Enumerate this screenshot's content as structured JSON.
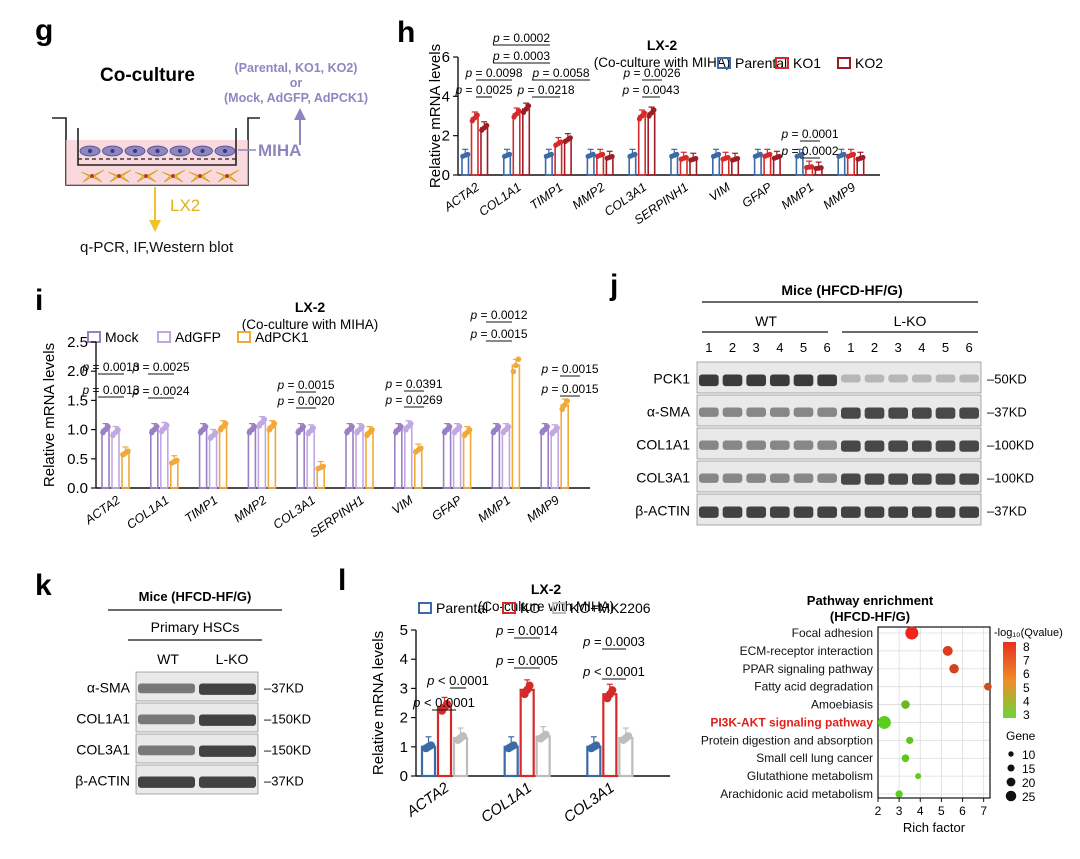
{
  "panels": {
    "g": "g",
    "h": "h",
    "i": "i",
    "j": "j",
    "k": "k",
    "l": "l"
  },
  "g": {
    "title": "Co-culture",
    "groups1": "(Parental, KO1, KO2)",
    "or": "or",
    "groups2": "(Mock, AdGFP, AdPCK1)",
    "miha": "MIHA",
    "lx2": "LX2",
    "assays": "q-PCR, IF,Western blot"
  },
  "chart_data": [
    {
      "id": "h",
      "type": "bar",
      "title": "LX-2",
      "subtitle": "(Co-culture with MIHA)",
      "ylabel": "Relative mRNA  levels",
      "ylim": [
        0,
        6
      ],
      "yticks": [
        "0",
        "2",
        "4",
        "6"
      ],
      "categories": [
        "ACTA2",
        "COL1A1",
        "TIMP1",
        "MMP2",
        "COL3A1",
        "SERPINH1",
        "VIM",
        "GFAP",
        "MMP1",
        "MMP9"
      ],
      "series": [
        {
          "name": "Parental",
          "color": "#3a6aa8",
          "values": [
            1,
            1,
            1,
            1,
            1,
            1,
            1,
            1,
            1,
            1
          ]
        },
        {
          "name": "KO1",
          "color": "#d62a2a",
          "values": [
            2.9,
            3.1,
            1.6,
            1.0,
            3.0,
            0.85,
            0.85,
            1.0,
            0.4,
            1.0
          ]
        },
        {
          "name": "KO2",
          "color": "#a01c24",
          "values": [
            2.4,
            3.35,
            1.8,
            0.9,
            3.15,
            0.8,
            0.8,
            0.9,
            0.35,
            0.85
          ]
        }
      ],
      "pvalues": [
        "p = 0.0002",
        "p = 0.0003",
        "p = 0.0098",
        "p = 0.0058",
        "p = 0.0026",
        "p = 0.0025",
        "p = 0.0218",
        "p = 0.0043",
        "p = 0.0001",
        "p = 0.0002"
      ]
    },
    {
      "id": "i",
      "type": "bar",
      "title": "LX-2",
      "subtitle": "(Co-culture with MIHA)",
      "ylabel": "Relative mRNA  levels",
      "ylim": [
        0,
        2.5
      ],
      "yticks": [
        "0.0",
        "0.5",
        "1.0",
        "1.5",
        "2.0",
        "2.5"
      ],
      "categories": [
        "ACTA2",
        "COL1A1",
        "TIMP1",
        "MMP2",
        "COL3A1",
        "SERPINH1",
        "VIM",
        "GFAP",
        "MMP1",
        "MMP9"
      ],
      "series": [
        {
          "name": "Mock",
          "color": "#9b7fc4",
          "values": [
            1,
            1,
            1,
            1,
            1,
            1,
            1,
            1,
            1,
            1
          ]
        },
        {
          "name": "AdGFP",
          "color": "#c1a8e2",
          "values": [
            0.95,
            1.02,
            0.9,
            1.12,
            0.98,
            1.0,
            1.05,
            1.0,
            1.0,
            0.98
          ]
        },
        {
          "name": "AdPCK1",
          "color": "#f0aa3a",
          "values": [
            0.6,
            0.45,
            1.05,
            1.05,
            0.35,
            0.95,
            0.65,
            0.95,
            2.1,
            1.42
          ]
        }
      ],
      "pvalues": [
        "p = 0.0013",
        "p = 0.0013",
        "p = 0.0025",
        "p = 0.0024",
        "p = 0.0015",
        "p = 0.0020",
        "p = 0.0391",
        "p = 0.0269",
        "p = 0.0012",
        "p = 0.0015",
        "p = 0.0015",
        "p = 0.0015"
      ]
    },
    {
      "id": "l",
      "type": "bar",
      "title": "LX-2",
      "subtitle": "(Co-culture with MIHA)",
      "ylabel": "Relative mRNA  levels",
      "ylim": [
        0,
        5
      ],
      "yticks": [
        "0",
        "1",
        "2",
        "3",
        "4",
        "5"
      ],
      "categories": [
        "ACTA2",
        "COL1A1",
        "COL3A1"
      ],
      "series": [
        {
          "name": "Parental",
          "color": "#3a6aa8",
          "values": [
            1,
            1,
            1
          ]
        },
        {
          "name": "KO",
          "color": "#d62a2a",
          "values": [
            2.35,
            2.95,
            2.8
          ]
        },
        {
          "name": "KO+MK2206",
          "color": "#bdbdbd",
          "values": [
            1.3,
            1.35,
            1.3
          ]
        }
      ],
      "pvalues": [
        "p < 0.0001",
        "p < 0.0001",
        "p = 0.0014",
        "p = 0.0005",
        "p = 0.0003",
        "p < 0.0001"
      ]
    },
    {
      "id": "pathway",
      "type": "scatter",
      "title": "Pathway enrichment",
      "subtitle": "(HFCD-HF/G)",
      "xlabel": "Rich factor",
      "xlim": [
        2,
        7.3
      ],
      "xticks": [
        "2",
        "3",
        "4",
        "5",
        "6",
        "7"
      ],
      "categories": [
        "Focal adhesion",
        "ECM-receptor interaction",
        "PPAR signaling pathway",
        "Fatty acid degradation",
        "Amoebiasis",
        "PI3K-AKT signaling pathway",
        "Protein digestion and absorption",
        "Small cell lung cancer",
        "Glutathione metabolism",
        "Arachidonic acid metabolism"
      ],
      "points": [
        {
          "x": 3.6,
          "gene": 25,
          "q": 8.2
        },
        {
          "x": 5.3,
          "gene": 18,
          "q": 7.4
        },
        {
          "x": 5.6,
          "gene": 17,
          "q": 7.2
        },
        {
          "x": 7.2,
          "gene": 13,
          "q": 6.8
        },
        {
          "x": 3.3,
          "gene": 15,
          "q": 3.6
        },
        {
          "x": 2.3,
          "gene": 25,
          "q": 3.0
        },
        {
          "x": 3.5,
          "gene": 12,
          "q": 3.3
        },
        {
          "x": 3.3,
          "gene": 13,
          "q": 3.2
        },
        {
          "x": 3.9,
          "gene": 9,
          "q": 3.1
        },
        {
          "x": 3.0,
          "gene": 12,
          "q": 3.0
        }
      ],
      "colorbar": {
        "title": "-log₁₀(Qvalue)",
        "ticks": [
          "8",
          "7",
          "6",
          "5",
          "4",
          "3"
        ]
      },
      "size_legend": {
        "title": "Gene",
        "items": [
          "10",
          "15",
          "20",
          "25"
        ]
      }
    }
  ],
  "j": {
    "header": "Mice (HFCD-HF/G)",
    "wt": "WT",
    "lko": "L-KO",
    "lanes": [
      "1",
      "2",
      "3",
      "4",
      "5",
      "6",
      "1",
      "2",
      "3",
      "4",
      "5",
      "6"
    ],
    "rows": [
      {
        "name": "PCK1",
        "kd": "50KD"
      },
      {
        "name": "α-SMA",
        "kd": "37KD"
      },
      {
        "name": "COL1A1",
        "kd": "100KD"
      },
      {
        "name": "COL3A1",
        "kd": "100KD"
      },
      {
        "name": "β-ACTIN",
        "kd": "37KD"
      }
    ]
  },
  "k": {
    "header": "Mice (HFCD-HF/G)",
    "sub": "Primary HSCs",
    "wt": "WT",
    "lko": "L-KO",
    "rows": [
      {
        "name": "α-SMA",
        "kd": "37KD"
      },
      {
        "name": "COL1A1",
        "kd": "150KD"
      },
      {
        "name": "COL3A1",
        "kd": "150KD"
      },
      {
        "name": "β-ACTIN",
        "kd": "37KD"
      }
    ]
  }
}
